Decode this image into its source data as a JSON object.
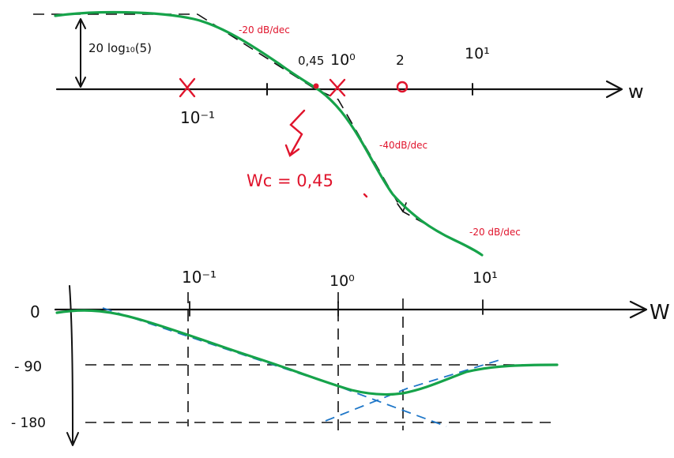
{
  "colors": {
    "ink": "#111111",
    "accent_red": "#e0142c",
    "curve_green": "#16a34a",
    "asymptote_blue": "#1f77c8"
  },
  "magnitude": {
    "gain_label": "20 log₁₀(5)",
    "omega_axis_label": "w",
    "tick_labels": {
      "t1": "10⁻¹",
      "t2": "0,45",
      "t3": "10⁰",
      "t4": "2",
      "t5": "10¹"
    },
    "slope_labels": {
      "s1": "-20 dB/dec",
      "s2": "-40dB/dec",
      "s3": "-20 dB/dec"
    },
    "crossover_label": "Wc = 0,45"
  },
  "phase": {
    "omega_axis_label": "W",
    "tick_labels": {
      "t1": "10⁻¹",
      "t2": "10⁰",
      "t3": "10¹"
    },
    "y_labels": {
      "zero": "0",
      "minus90": "- 90",
      "minus180": "- 180"
    }
  }
}
